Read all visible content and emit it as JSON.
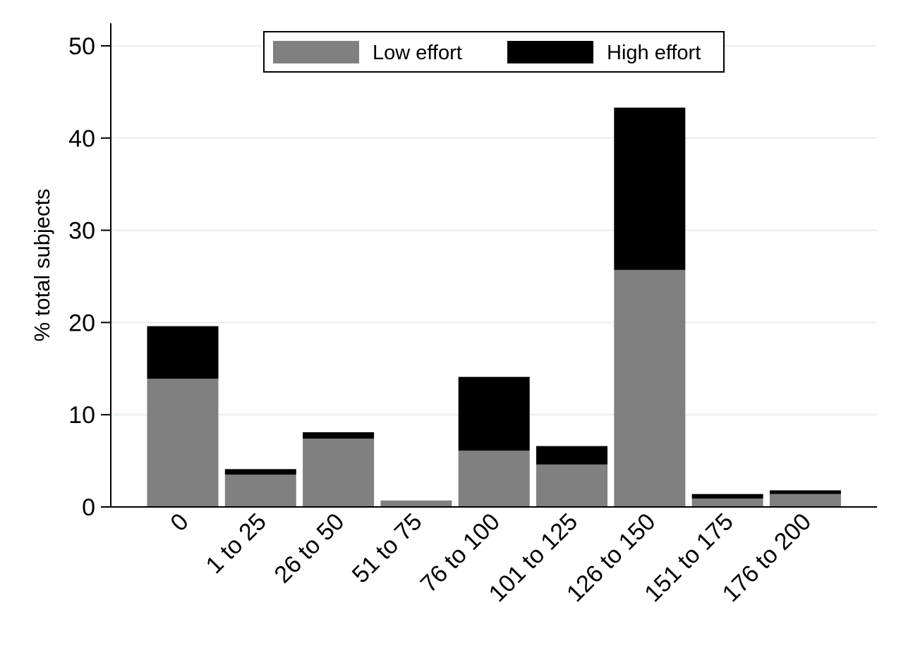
{
  "chart_data": {
    "type": "bar",
    "stacked": true,
    "categories": [
      "0",
      "1 to 25",
      "26 to 50",
      "51 to 75",
      "76 to 100",
      "101 to 125",
      "126 to 150",
      "151 to 175",
      "176 to 200"
    ],
    "series": [
      {
        "name": "Low effort",
        "color": "#808080",
        "values": [
          13.9,
          3.5,
          7.4,
          0.7,
          6.1,
          4.6,
          25.7,
          0.9,
          1.4
        ]
      },
      {
        "name": "High effort",
        "color": "#000000",
        "values": [
          5.7,
          0.6,
          0.7,
          0.0,
          8.0,
          2.0,
          17.6,
          0.5,
          0.4
        ]
      }
    ],
    "title": "",
    "xlabel": "",
    "ylabel": "% total subjects",
    "ylim": [
      0,
      50
    ],
    "yticks": [
      0,
      10,
      20,
      30,
      40,
      50
    ],
    "grid": true,
    "gridline_color": "#e8eef0",
    "legend_position": "top-center"
  }
}
